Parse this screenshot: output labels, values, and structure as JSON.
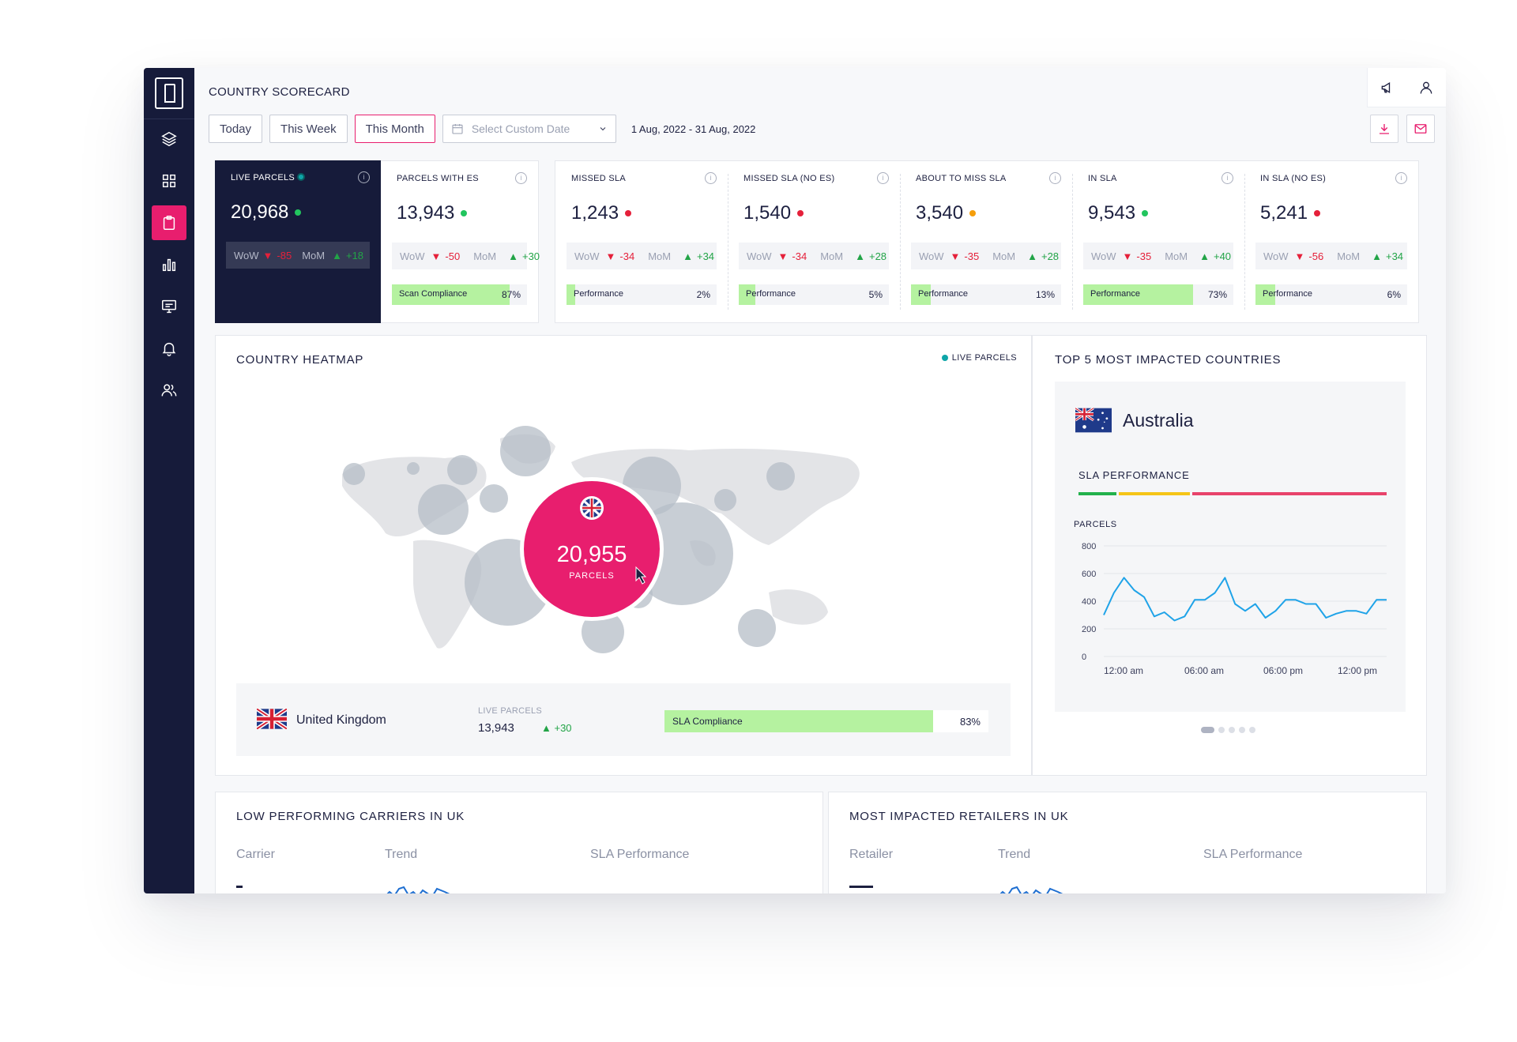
{
  "page": {
    "title": "COUNTRY SCORECARD"
  },
  "sidebar": {
    "items": [
      {
        "icon": "logo-icon"
      },
      {
        "icon": "layers-icon"
      },
      {
        "icon": "grid-icon"
      },
      {
        "icon": "clipboard-icon",
        "active": true
      },
      {
        "icon": "bar-chart-icon"
      },
      {
        "icon": "monitor-icon"
      },
      {
        "icon": "bell-icon"
      },
      {
        "icon": "users-icon"
      }
    ]
  },
  "filters": {
    "today": "Today",
    "this_week": "This Week",
    "this_month": "This Month",
    "custom_placeholder": "Select Custom Date",
    "date_range": "1 Aug, 2022 - 31 Aug, 2022"
  },
  "kpis": [
    {
      "label": "LIVE PARCELS",
      "value": "20,968",
      "dot": "#22c55e",
      "wow_label": "WoW",
      "wow": "-85",
      "mom_label": "MoM",
      "mom": "+18"
    },
    {
      "label": "PARCELS WITH ES",
      "value": "13,943",
      "dot": "#22c55e",
      "wow_label": "WoW",
      "wow": "-50",
      "mom_label": "MoM",
      "mom": "+30",
      "bar_label": "Scan Compliance",
      "bar_pct": "87%",
      "bar_value": 0.87
    },
    {
      "label": "MISSED SLA",
      "value": "1,243",
      "dot": "#e5203a",
      "wow_label": "WoW",
      "wow": "-34",
      "mom_label": "MoM",
      "mom": "+34",
      "bar_label": "Performance",
      "bar_pct": "2%",
      "bar_value": 0.02
    },
    {
      "label": "MISSED SLA (NO ES)",
      "value": "1,540",
      "dot": "#e5203a",
      "wow_label": "WoW",
      "wow": "-34",
      "mom_label": "MoM",
      "mom": "+28",
      "bar_label": "Performance",
      "bar_pct": "5%",
      "bar_value": 0.05
    },
    {
      "label": "ABOUT TO MISS SLA",
      "value": "3,540",
      "dot": "#f59e0b",
      "wow_label": "WoW",
      "wow": "-35",
      "mom_label": "MoM",
      "mom": "+28",
      "bar_label": "Performance",
      "bar_pct": "13%",
      "bar_value": 0.13
    },
    {
      "label": "IN SLA",
      "value": "9,543",
      "dot": "#22c55e",
      "wow_label": "WoW",
      "wow": "-35",
      "mom_label": "MoM",
      "mom": "+40",
      "bar_label": "Performance",
      "bar_pct": "73%",
      "bar_value": 0.73
    },
    {
      "label": "IN SLA (NO ES)",
      "value": "5,241",
      "dot": "#e5203a",
      "wow_label": "WoW",
      "wow": "-56",
      "mom_label": "MoM",
      "mom": "+34",
      "bar_label": "Performance",
      "bar_pct": "6%",
      "bar_value": 0.06
    }
  ],
  "heatmap": {
    "title": "COUNTRY HEATMAP",
    "legend": "LIVE PARCELS",
    "highlight_value": "20,955",
    "highlight_unit": "PARCELS",
    "selected": {
      "country": "United Kingdom",
      "live_label": "LIVE PARCELS",
      "live_value": "13,943",
      "live_delta": "+30",
      "bar_label": "SLA Compliance",
      "bar_pct": "83%",
      "bar_value": 0.83
    }
  },
  "top5": {
    "title": "TOP 5 MOST IMPACTED COUNTRIES",
    "country": "Australia",
    "sla_title": "SLA PERFORMANCE",
    "pager_count": 5
  },
  "chart_data": {
    "type": "line",
    "ylabel": "PARCELS",
    "ylim": [
      0,
      800
    ],
    "yticks": [
      "800",
      "600",
      "400",
      "200",
      "0"
    ],
    "xticks": [
      "12:00 am",
      "06:00 am",
      "06:00 pm",
      "12:00 pm"
    ],
    "series": [
      {
        "color": "#1fa3e8",
        "values": [
          300,
          460,
          570,
          480,
          430,
          290,
          320,
          260,
          290,
          410,
          410,
          460,
          570,
          380,
          330,
          380,
          280,
          330,
          410,
          410,
          380,
          380,
          280,
          310,
          330,
          330,
          310,
          410,
          410
        ]
      }
    ]
  },
  "carriers": {
    "title": "LOW PERFORMING CARRIERS IN UK",
    "col_carrier": "Carrier",
    "col_trend": "Trend",
    "col_sla": "SLA Performance"
  },
  "retailers": {
    "title": "MOST IMPACTED RETAILERS IN UK",
    "col_retailer": "Retailer",
    "col_trend": "Trend",
    "col_sla": "SLA Performance"
  },
  "colors": {
    "accent": "#e81e6e",
    "sidebar": "#161b3a",
    "good": "#22a447",
    "bad": "#e5203a",
    "bar": "#b5f2a0",
    "line": "#1fa3e8"
  }
}
